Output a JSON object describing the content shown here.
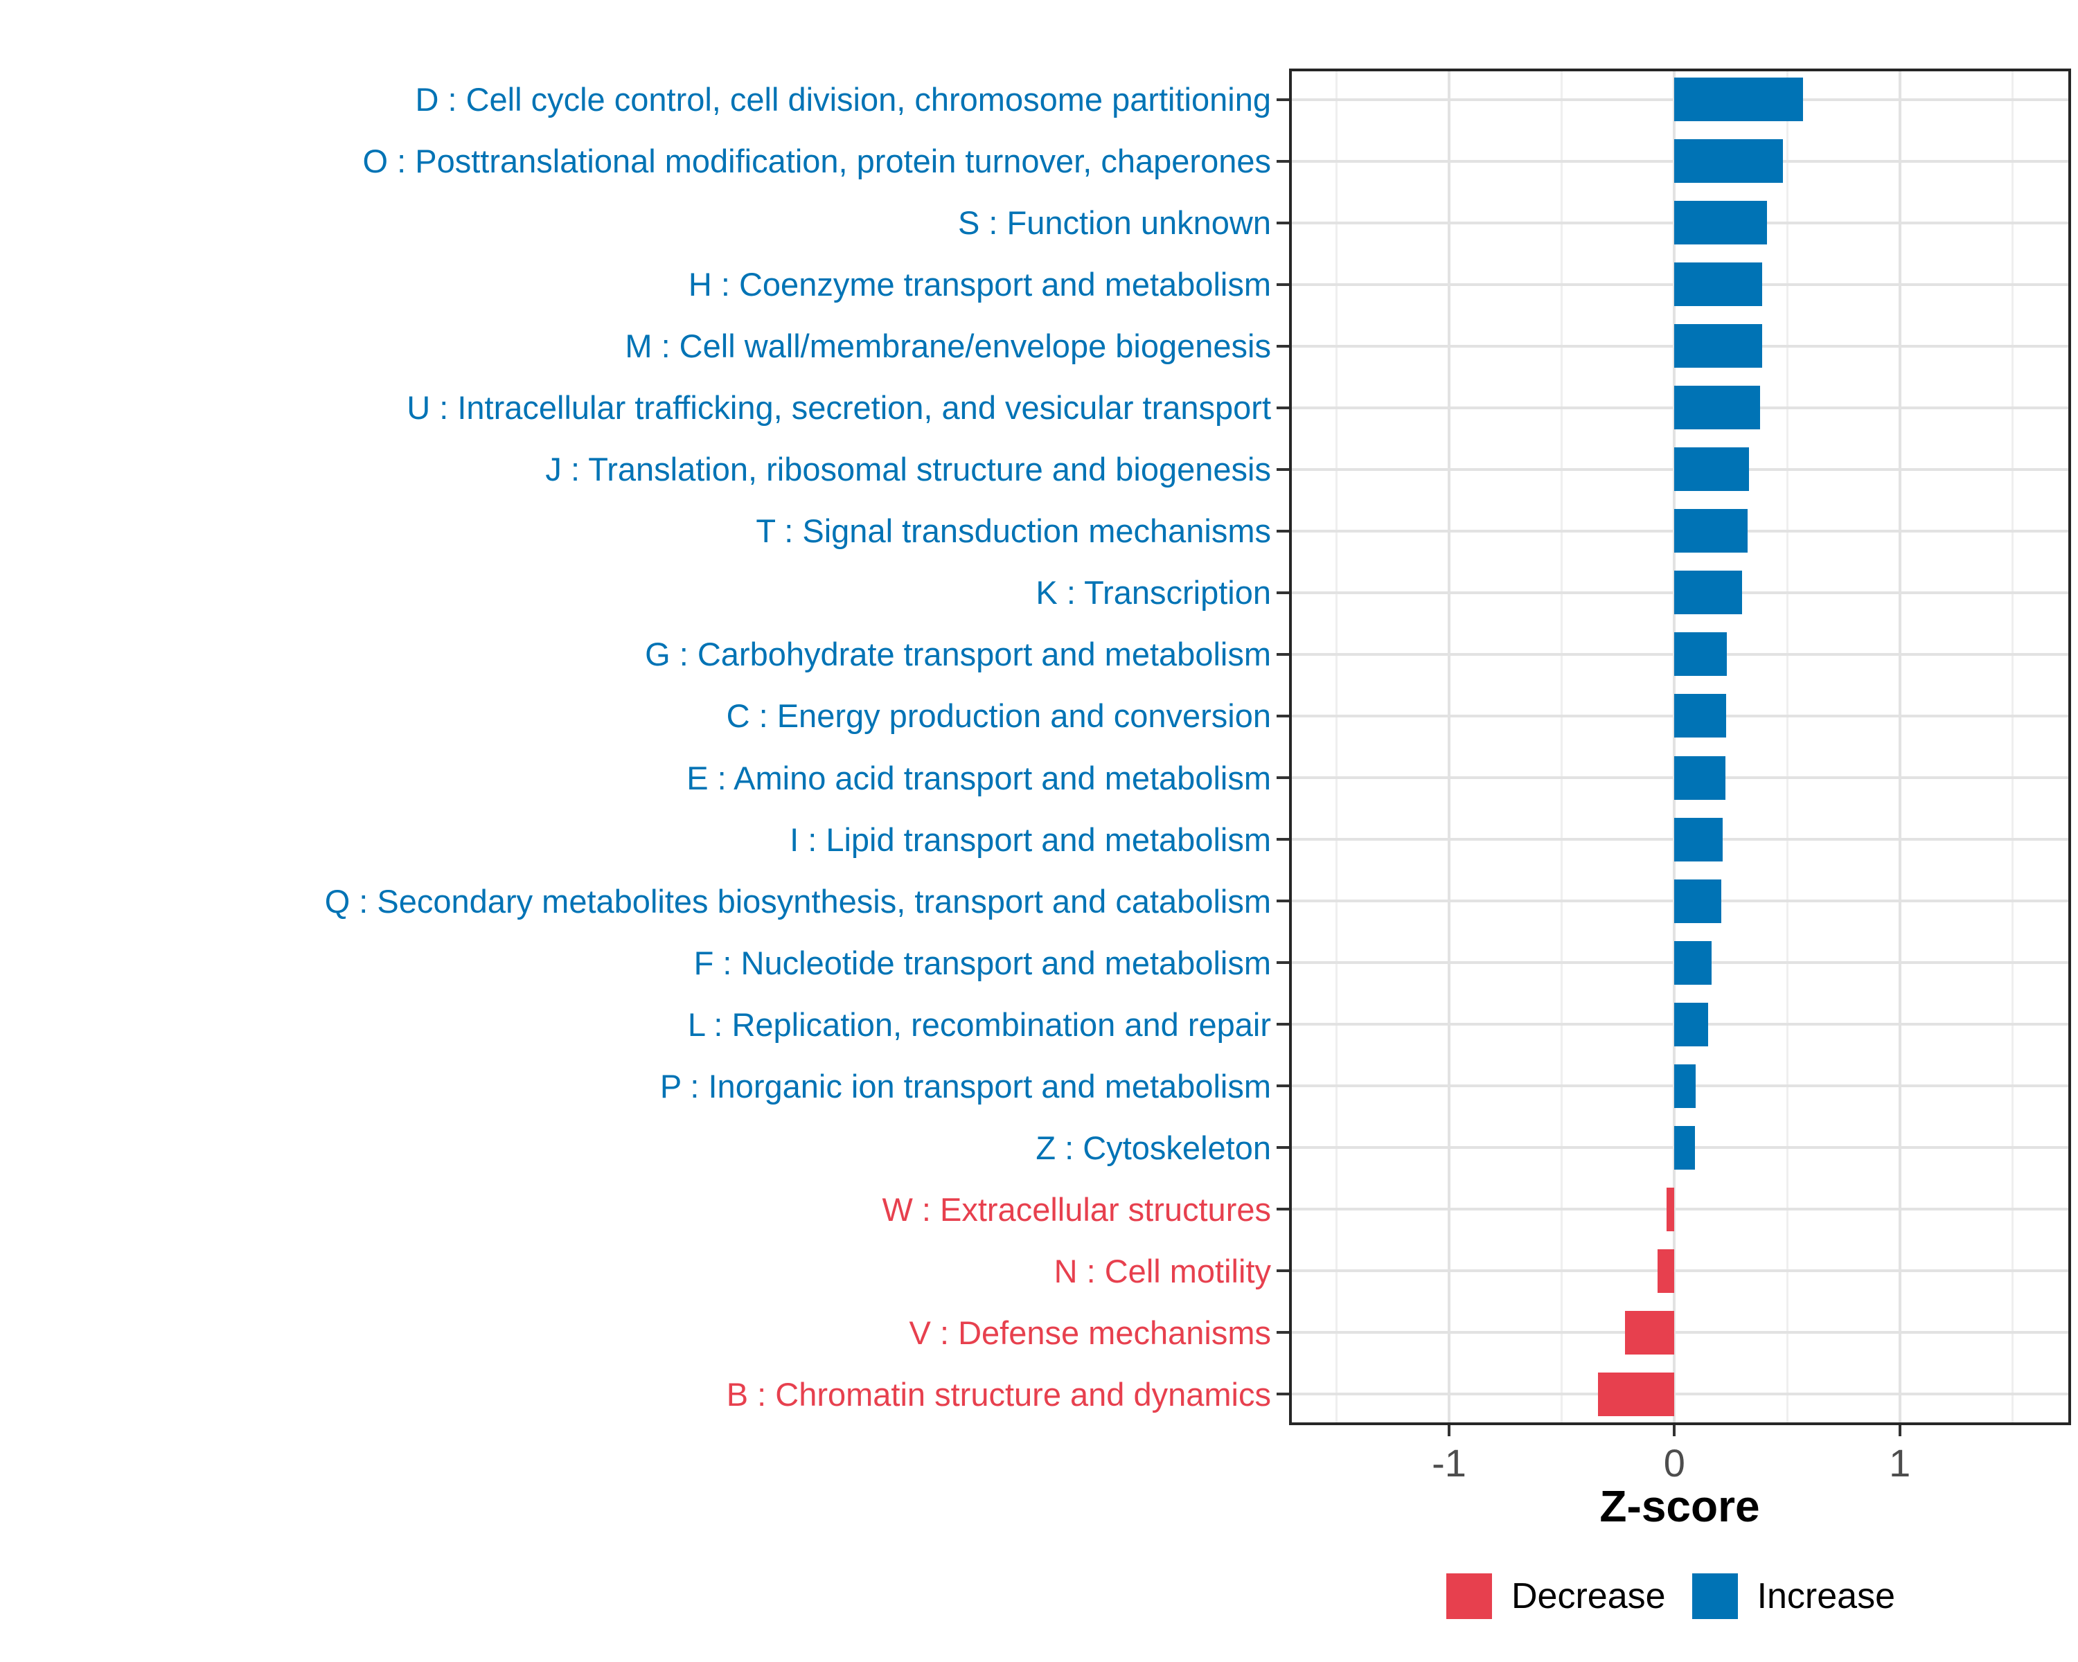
{
  "chart_data": {
    "type": "bar",
    "orientation": "horizontal",
    "title": "",
    "xlabel": "Z-score",
    "ylabel": "",
    "xlim": [
      -1.71,
      1.76
    ],
    "x_ticks": {
      "values": [
        -1,
        0,
        1
      ],
      "labels": [
        "-1",
        "0",
        "1"
      ]
    },
    "x_minor_ticks": [
      -1.5,
      -0.5,
      0.5,
      1.5
    ],
    "grid": "vertical major+minor, horizontal major per category",
    "legend_position": "bottom-right",
    "colors": {
      "Increase": "#0073B5",
      "Decrease": "#E7404E"
    },
    "codes": [
      "D",
      "O",
      "S",
      "H",
      "M",
      "U",
      "J",
      "T",
      "K",
      "G",
      "C",
      "E",
      "I",
      "Q",
      "F",
      "L",
      "P",
      "Z",
      "W",
      "N",
      "V",
      "B"
    ],
    "categories": [
      "D : Cell cycle control, cell division, chromosome partitioning",
      "O : Posttranslational modification, protein turnover, chaperones",
      "S : Function unknown",
      "H : Coenzyme transport and metabolism",
      "M : Cell wall/membrane/envelope biogenesis",
      "U : Intracellular trafficking, secretion, and vesicular transport",
      "J : Translation, ribosomal structure and biogenesis",
      "T : Signal transduction mechanisms",
      "K : Transcription",
      "G : Carbohydrate transport and metabolism",
      "C : Energy production and conversion",
      "E : Amino acid transport and metabolism",
      "I : Lipid transport and metabolism",
      "Q : Secondary metabolites biosynthesis, transport and catabolism",
      "F : Nucleotide transport and metabolism",
      "L : Replication, recombination and repair",
      "P : Inorganic ion transport and metabolism",
      "Z : Cytoskeleton",
      "W : Extracellular structures",
      "N : Cell motility",
      "V : Defense mechanisms",
      "B : Chromatin structure and dynamics"
    ],
    "values": [
      0.57,
      0.48,
      0.41,
      0.39,
      0.39,
      0.38,
      0.33,
      0.325,
      0.3,
      0.232,
      0.23,
      0.226,
      0.215,
      0.208,
      0.165,
      0.151,
      0.095,
      0.092,
      -0.035,
      -0.075,
      -0.22,
      -0.34
    ],
    "groups": [
      "Increase",
      "Increase",
      "Increase",
      "Increase",
      "Increase",
      "Increase",
      "Increase",
      "Increase",
      "Increase",
      "Increase",
      "Increase",
      "Increase",
      "Increase",
      "Increase",
      "Increase",
      "Increase",
      "Increase",
      "Increase",
      "Decrease",
      "Decrease",
      "Decrease",
      "Decrease"
    ]
  },
  "legend": {
    "items": [
      {
        "label": "Decrease",
        "color": "#E7404E"
      },
      {
        "label": "Increase",
        "color": "#0073B5"
      }
    ]
  }
}
